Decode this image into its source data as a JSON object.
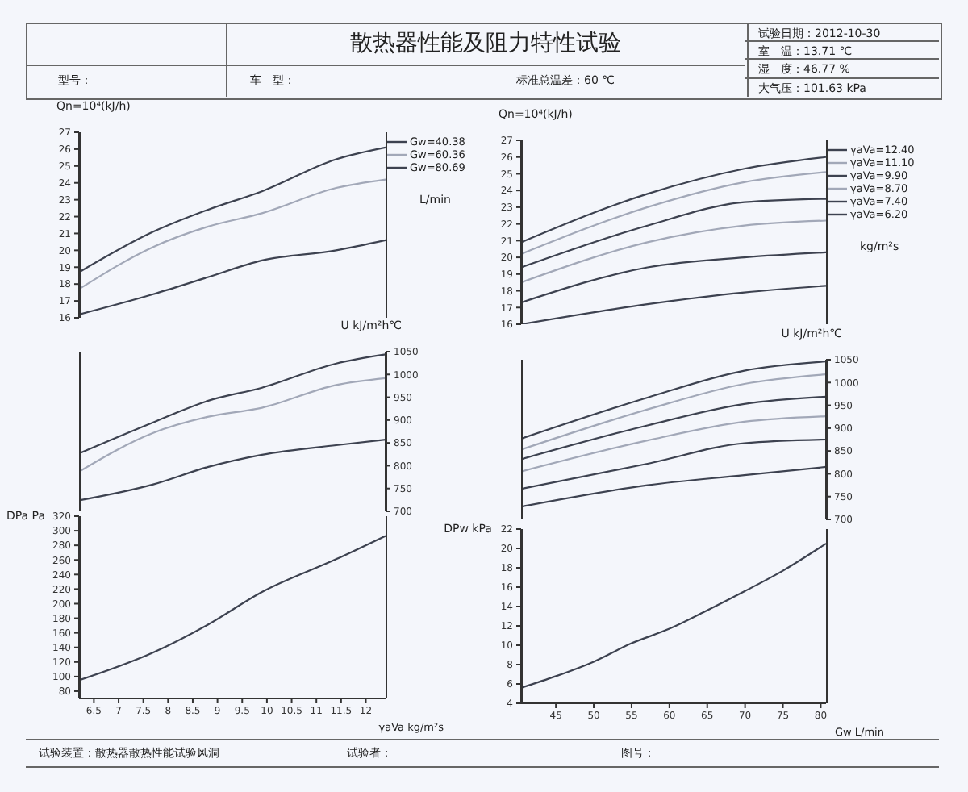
{
  "chart_data": [
    {
      "type": "line",
      "title": "散热器性能及阻力特性试验",
      "annotations": [
        "试验日期：2012-10-30",
        "室　温：13.71 ℃",
        "湿　度：46.77 %",
        "大气压：101.63 kPa",
        "型号：",
        "车　型：",
        "标准总温差：60 ℃",
        "试验装置：散热器散热性能试验风洞",
        "试验者：",
        "图号："
      ],
      "ylabel": "Qn=10⁴(kJ/h)",
      "legend": "right",
      "legend_title": "L/min",
      "tick_labels": "y",
      "xlim": [
        6.2,
        12.4
      ],
      "xticks": [
        6.5,
        7,
        7.5,
        8,
        8.5,
        9,
        9.5,
        10,
        10.5,
        11,
        11.5,
        12
      ],
      "ylim": [
        16,
        27
      ],
      "yticks": [
        16,
        17,
        18,
        19,
        20,
        21,
        22,
        23,
        24,
        25,
        26,
        27
      ],
      "x": [
        6.2,
        7.7,
        8.8,
        9.9,
        11.4,
        12.4
      ],
      "series": [
        {
          "name": "Gw=40.38",
          "color": "#3d4250",
          "values": [
            16.2,
            17.4,
            18.4,
            19.4,
            20.0,
            20.6
          ]
        },
        {
          "name": "Gw=60.36",
          "color": "#a2a8b8",
          "values": [
            17.7,
            20.2,
            21.4,
            22.2,
            23.7,
            24.2
          ]
        },
        {
          "name": "Gw=80.69",
          "color": "#3d4250",
          "values": [
            18.7,
            21.1,
            22.4,
            23.5,
            25.4,
            26.1
          ]
        }
      ]
    },
    {
      "type": "line",
      "y2label": "U kJ/m²h℃",
      "tick_labels": "y",
      "xlim": [
        6.2,
        12.4
      ],
      "xticks": [
        6.5,
        7,
        7.5,
        8,
        8.5,
        9,
        9.5,
        10,
        10.5,
        11,
        11.5,
        12
      ],
      "y2lim": [
        700,
        1050
      ],
      "y2ticks": [
        700,
        750,
        800,
        850,
        900,
        950,
        1000,
        1050
      ],
      "x": [
        6.2,
        7.7,
        8.8,
        9.9,
        11.4,
        12.4
      ],
      "series": [
        {
          "color": "#3d4250",
          "axis": "y2",
          "values": [
            724,
            759,
            797,
            824,
            845,
            857
          ]
        },
        {
          "color": "#a2a8b8",
          "axis": "y2",
          "values": [
            787,
            872,
            907,
            927,
            977,
            992
          ]
        },
        {
          "color": "#3d4250",
          "axis": "y2",
          "values": [
            827,
            895,
            942,
            971,
            1024,
            1044
          ]
        }
      ]
    },
    {
      "type": "line",
      "xlabel": "γaVa kg/m²s",
      "ylabel": "DPa Pa",
      "xlim": [
        6.2,
        12.4
      ],
      "xticks": [
        6.5,
        7,
        7.5,
        8,
        8.5,
        9,
        9.5,
        10,
        10.5,
        11,
        11.5,
        12
      ],
      "ylim": [
        70,
        320
      ],
      "yticks": [
        80,
        100,
        120,
        140,
        160,
        180,
        200,
        220,
        240,
        260,
        280,
        300,
        320
      ],
      "x": [
        6.2,
        7.7,
        8.8,
        9.9,
        11.4,
        12.4
      ],
      "series": [
        {
          "color": "#3d4250",
          "values": [
            95,
            133,
            171,
            216,
            261,
            293
          ]
        }
      ]
    },
    {
      "type": "line",
      "ylabel": "Qn=10⁴(kJ/h)",
      "legend": "right",
      "legend_title": "kg/m²s",
      "tick_labels": "y",
      "xlim": [
        40.4,
        80.7
      ],
      "xticks": [
        45,
        50,
        55,
        60,
        65,
        70,
        75,
        80
      ],
      "ylim": [
        16,
        27
      ],
      "yticks": [
        16,
        17,
        18,
        19,
        20,
        21,
        22,
        23,
        24,
        25,
        26,
        27
      ],
      "x": [
        40.4,
        57.1,
        69.9,
        80.7
      ],
      "series": [
        {
          "name": "γaVa=12.40",
          "color": "#3d4250",
          "values": [
            20.9,
            23.8,
            25.3,
            26.0
          ]
        },
        {
          "name": "γaVa=11.10",
          "color": "#a2a8b8",
          "values": [
            20.2,
            23.0,
            24.5,
            25.1
          ]
        },
        {
          "name": "γaVa=9.90",
          "color": "#3d4250",
          "values": [
            19.4,
            21.9,
            23.3,
            23.5
          ]
        },
        {
          "name": "γaVa=8.70",
          "color": "#a2a8b8",
          "values": [
            18.5,
            20.9,
            21.9,
            22.2
          ]
        },
        {
          "name": "γaVa=7.40",
          "color": "#3d4250",
          "values": [
            17.3,
            19.4,
            20.0,
            20.3
          ]
        },
        {
          "name": "γaVa=6.20",
          "color": "#3d4250",
          "values": [
            16.0,
            17.2,
            17.9,
            18.3
          ]
        }
      ]
    },
    {
      "type": "line",
      "y2label": "U kJ/m²h℃",
      "tick_labels": "y",
      "xlim": [
        40.4,
        80.7
      ],
      "xticks": [
        45,
        50,
        55,
        60,
        65,
        70,
        75,
        80
      ],
      "y2lim": [
        700,
        1050
      ],
      "y2ticks": [
        700,
        750,
        800,
        850,
        900,
        950,
        1000,
        1050
      ],
      "x": [
        40.4,
        57.1,
        69.9,
        80.7
      ],
      "series": [
        {
          "color": "#3d4250",
          "axis": "y2",
          "values": [
            877,
            967,
            1026,
            1046
          ]
        },
        {
          "color": "#a2a8b8",
          "axis": "y2",
          "values": [
            853,
            941,
            997,
            1018
          ]
        },
        {
          "color": "#3d4250",
          "axis": "y2",
          "values": [
            832,
            906,
            953,
            969
          ]
        },
        {
          "color": "#a2a8b8",
          "axis": "y2",
          "values": [
            805,
            873,
            914,
            926
          ]
        },
        {
          "color": "#3d4250",
          "axis": "y2",
          "values": [
            767,
            822,
            867,
            875
          ]
        },
        {
          "color": "#3d4250",
          "axis": "y2",
          "values": [
            728,
            775,
            797,
            815
          ]
        }
      ]
    },
    {
      "type": "line",
      "xlabel": "Gw L/min",
      "ylabel": "DPw kPa",
      "xlim": [
        40.4,
        80.7
      ],
      "xticks": [
        45,
        50,
        55,
        60,
        65,
        70,
        75,
        80
      ],
      "ylim": [
        4,
        22
      ],
      "yticks": [
        4,
        6,
        8,
        10,
        12,
        14,
        16,
        18,
        20,
        22
      ],
      "x": [
        40.4,
        45,
        50,
        55,
        60,
        65,
        70,
        75,
        80.7
      ],
      "series": [
        {
          "color": "#3d4250",
          "values": [
            5.6,
            6.8,
            8.3,
            10.2,
            11.7,
            13.6,
            15.6,
            17.7,
            20.5
          ]
        }
      ]
    }
  ]
}
